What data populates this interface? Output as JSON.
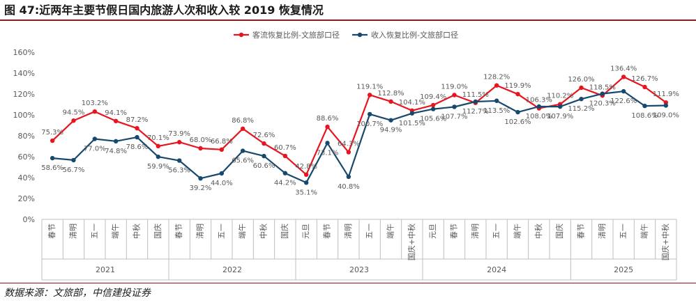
{
  "figure": {
    "title": "图 47:近两年主要节假日国内旅游人次和收入较 2019 恢复情况",
    "source": "数据来源：文旅部，中信建投证券"
  },
  "chart_data": {
    "type": "line",
    "ylim": [
      0,
      160
    ],
    "yticks": [
      "0%",
      "20%",
      "40%",
      "60%",
      "80%",
      "100%",
      "120%",
      "140%",
      "160%"
    ],
    "categories": [
      "春节",
      "清明",
      "五一",
      "端午",
      "中秋",
      "国庆",
      "春节",
      "清明",
      "五一",
      "端午",
      "中秋",
      "国庆",
      "元旦",
      "春节",
      "清明",
      "五一",
      "端午",
      "国庆+中秋",
      "元旦",
      "春节",
      "清明",
      "五一",
      "端午",
      "中秋",
      "国庆",
      "春节",
      "清明",
      "五一",
      "端午",
      "国庆+中秋"
    ],
    "year_groups": [
      {
        "label": "2021",
        "count": 6
      },
      {
        "label": "2022",
        "count": 6
      },
      {
        "label": "2023",
        "count": 6
      },
      {
        "label": "2024",
        "count": 7
      },
      {
        "label": "2025",
        "count": 5
      }
    ],
    "legend_position": "top-center",
    "colors": {
      "visitors": "#e8141f",
      "revenue": "#17486e",
      "axis": "#bfbfbf",
      "text": "#595959"
    },
    "series": [
      {
        "name": "客流恢复比例-文旅部口径",
        "values": [
          75.3,
          94.5,
          103.2,
          94.1,
          87.2,
          70.1,
          73.9,
          68.0,
          66.8,
          86.8,
          72.6,
          60.7,
          42.8,
          88.6,
          64.3,
          119.1,
          112.8,
          104.1,
          109.4,
          119.0,
          111.5,
          128.2,
          119.9,
          106.3,
          110.2,
          126.0,
          118.5,
          136.4,
          126.7,
          111.9
        ],
        "labels": [
          "75.3%",
          "94.5%",
          "103.2%",
          "94.1%",
          "87.2%",
          "70.1%",
          "73.9%",
          "68.0%",
          "66.8%",
          "86.8%",
          "72.6%",
          "60.7%",
          "42.8%",
          "88.6%",
          "64.3%",
          "119.1%",
          "112.8%",
          "104.1%",
          "109.4%",
          "119.0%",
          "111.5%",
          "128.2%",
          "119.9%",
          "106.3%",
          "110.2%",
          "126.0%",
          "118.5%",
          "136.4%",
          "126.7%",
          "111.9%"
        ]
      },
      {
        "name": "收入恢复比例-文旅部口径",
        "values": [
          58.6,
          56.7,
          77.0,
          74.8,
          78.6,
          59.9,
          56.3,
          39.2,
          44.0,
          65.6,
          60.6,
          44.2,
          35.1,
          73.1,
          40.8,
          100.7,
          94.9,
          101.5,
          105.6,
          107.7,
          112.7,
          113.5,
          102.6,
          108.0,
          107.9,
          115.2,
          120.3,
          122.6,
          108.6,
          109.0
        ],
        "labels": [
          "58.6%",
          "56.7%",
          "77.0%",
          "74.8%",
          "78.6%",
          "59.9%",
          "56.3%",
          "39.2%",
          "44.0%",
          "65.6%",
          "60.6%",
          "44.2%",
          "35.1%",
          "73.1%",
          "40.8%",
          "100.7%",
          "94.9%",
          "101.5%",
          "105.6%",
          "107.7%",
          "112.7%",
          "113.5%",
          "102.6%",
          "108.0%",
          "107.9%",
          "115.2%",
          "120.3%",
          "122.6%",
          "108.6%",
          "109.0%"
        ]
      }
    ]
  }
}
